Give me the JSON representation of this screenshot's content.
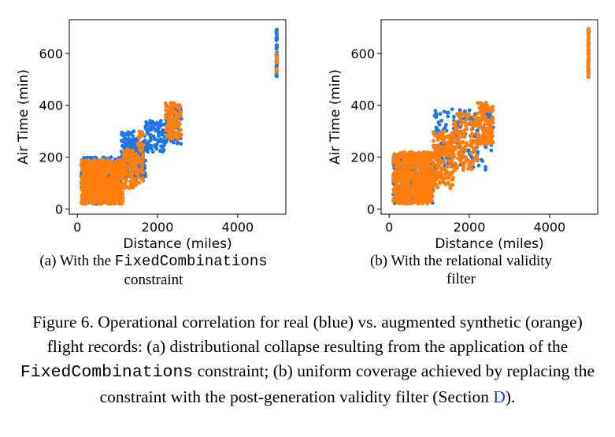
{
  "colors": {
    "real": "#1f77e6",
    "synthetic": "#ff7f0e"
  },
  "chart_data": [
    {
      "type": "scatter",
      "title": "",
      "xlabel": "Distance (miles)",
      "ylabel": "Air Time (min)",
      "xlim": [
        -200,
        5200
      ],
      "ylim": [
        -20,
        730
      ],
      "xticks": [
        0,
        2000,
        4000
      ],
      "xtick_labels": [
        "0",
        "2000",
        "4000"
      ],
      "yticks": [
        0,
        200,
        400,
        600
      ],
      "ytick_labels": [
        "0",
        "200",
        "400",
        "600"
      ],
      "grid": false,
      "series": [
        {
          "color": "#1f77e6",
          "clusters": [
            {
              "x": [
                100,
                1100
              ],
              "y": [
                20,
                200
              ],
              "n": 500
            },
            {
              "x": [
                1100,
                1700
              ],
              "y": [
                120,
                300
              ],
              "n": 220
            },
            {
              "x": [
                1700,
                2200
              ],
              "y": [
                220,
                340
              ],
              "n": 90
            },
            {
              "x": [
                2200,
                2600
              ],
              "y": [
                250,
                400
              ],
              "n": 60
            },
            {
              "x": [
                4960,
                4980
              ],
              "y": [
                505,
                695
              ],
              "n": 45
            }
          ]
        },
        {
          "color": "#ff7f0e",
          "clusters": [
            {
              "x": [
                100,
                1150
              ],
              "y": [
                20,
                190
              ],
              "n": 800
            },
            {
              "x": [
                1150,
                1500
              ],
              "y": [
                80,
                230
              ],
              "n": 120
            },
            {
              "x": [
                1500,
                1650
              ],
              "y": [
                100,
                300
              ],
              "n": 50
            },
            {
              "x": [
                2200,
                2600
              ],
              "y": [
                270,
                410
              ],
              "n": 110
            },
            {
              "x": [
                4960,
                4980
              ],
              "y": [
                520,
                600
              ],
              "n": 8
            }
          ]
        }
      ]
    },
    {
      "type": "scatter",
      "title": "",
      "xlabel": "Distance (miles)",
      "ylabel": "Air Time (min)",
      "xlim": [
        -200,
        5200
      ],
      "ylim": [
        -20,
        730
      ],
      "xticks": [
        0,
        2000,
        4000
      ],
      "xtick_labels": [
        "0",
        "2000",
        "4000"
      ],
      "yticks": [
        0,
        200,
        400,
        600
      ],
      "ytick_labels": [
        "0",
        "200",
        "400",
        "600"
      ],
      "grid": false,
      "series": [
        {
          "color": "#1f77e6",
          "clusters": [
            {
              "x": [
                100,
                1100
              ],
              "y": [
                20,
                200
              ],
              "n": 300
            },
            {
              "x": [
                1100,
                2600
              ],
              "y": [
                150,
                390
              ],
              "n": 160
            },
            {
              "x": [
                4960,
                4980
              ],
              "y": [
                500,
                695
              ],
              "n": 25
            }
          ]
        },
        {
          "color": "#ff7f0e",
          "clusters": [
            {
              "x": [
                100,
                1100
              ],
              "y": [
                20,
                220
              ],
              "n": 700
            },
            {
              "x": [
                1100,
                1600
              ],
              "y": [
                80,
                300
              ],
              "n": 200
            },
            {
              "x": [
                1600,
                2200
              ],
              "y": [
                150,
                370
              ],
              "n": 150
            },
            {
              "x": [
                2200,
                2600
              ],
              "y": [
                250,
                410
              ],
              "n": 130
            },
            {
              "x": [
                4960,
                4980
              ],
              "y": [
                500,
                695
              ],
              "n": 70
            }
          ]
        }
      ]
    }
  ],
  "subcaptions": {
    "a": {
      "pre": "(a) With the ",
      "code": "FixedCombinations",
      "post": "constraint"
    },
    "b": {
      "line1": "(b) With the relational validity",
      "line2": "filter"
    }
  },
  "caption": {
    "part1": "Figure 6. Operational correlation for real (blue) vs. augmented synthetic (orange) flight records: (a) distributional collapse resulting from the application of the ",
    "code": "FixedCombinations",
    "part2": " constraint; (b) uniform coverage achieved by replacing the constraint with the post-generation validity filter (Section ",
    "ref": "D",
    "part3": ")."
  }
}
